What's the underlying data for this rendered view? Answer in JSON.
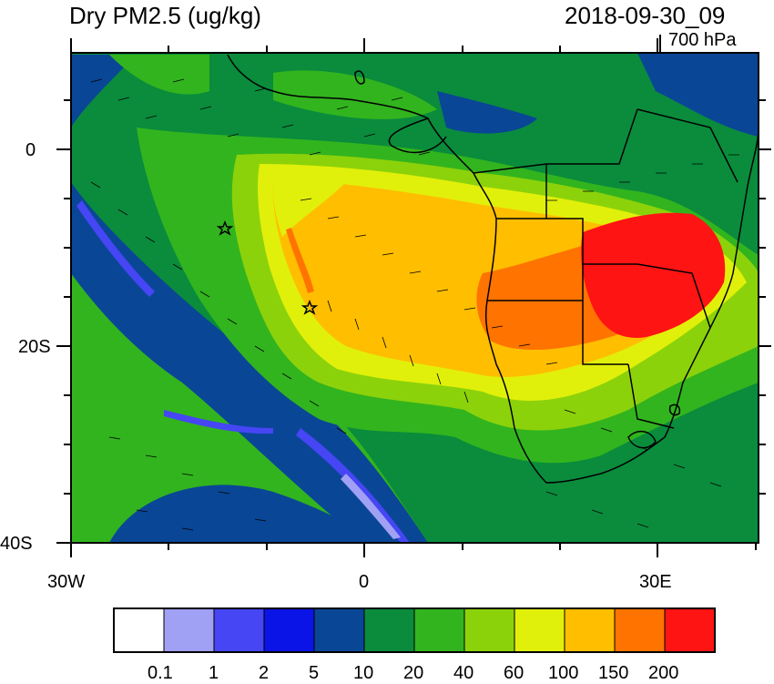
{
  "header": {
    "title": "Dry PM2.5 (ug/kg)",
    "datetime": "2018-09-30_09",
    "level": "700 hPa"
  },
  "map": {
    "lat_labels": [
      "0",
      "20S",
      "40S"
    ],
    "lon_labels": [
      "30W",
      "0",
      "30E"
    ],
    "markers": [
      "star-marker",
      "star-marker"
    ]
  },
  "colorbar": {
    "labels": [
      "0.1",
      "1",
      "2",
      "5",
      "10",
      "20",
      "40",
      "60",
      "100",
      "150",
      "200"
    ],
    "colors": [
      "#ffffff",
      "#a0a0f5",
      "#4646f5",
      "#0a14e6",
      "#0a4696",
      "#0a8c3c",
      "#32b41e",
      "#8cd20a",
      "#e1f00a",
      "#ffbe00",
      "#ff7300",
      "#ff1414"
    ]
  }
}
